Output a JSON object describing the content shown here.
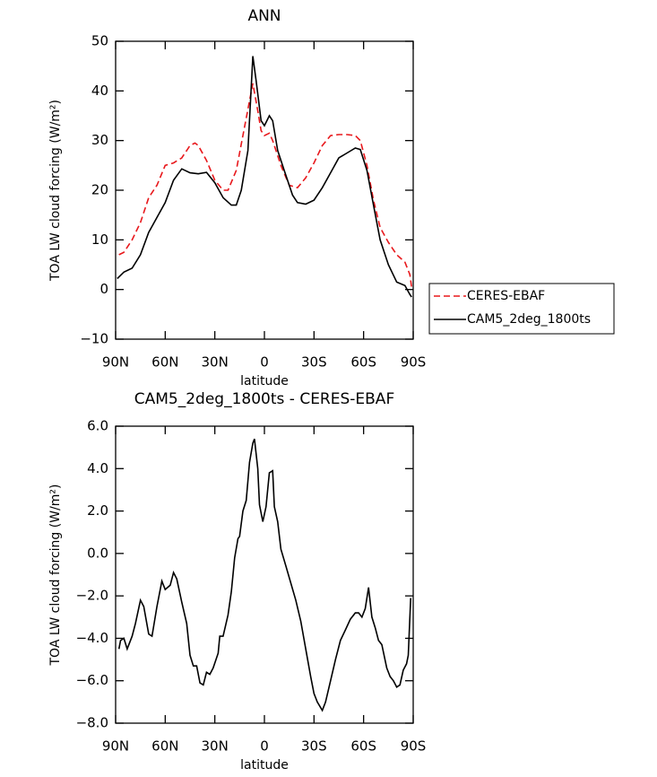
{
  "chart_data": [
    {
      "type": "line",
      "title": "ANN",
      "x_label": "latitude",
      "y_label": "TOA LW cloud forcing (W/m²)",
      "xlim": [
        90,
        -90
      ],
      "xticks": [
        {
          "value": 90,
          "label": "90N"
        },
        {
          "value": 60,
          "label": "60N"
        },
        {
          "value": 30,
          "label": "30N"
        },
        0,
        {
          "value": -30,
          "label": "30S"
        },
        {
          "value": -60,
          "label": "60S"
        },
        {
          "value": -90,
          "label": "90S"
        }
      ],
      "ylim": [
        -10,
        50
      ],
      "yticks": [
        {
          "value": -10,
          "label": "−10"
        },
        0,
        10,
        20,
        30,
        40,
        50
      ],
      "legend": "right",
      "series": [
        {
          "name": "CERES-EBAF",
          "color": "#e8181c",
          "style": "dashed",
          "x": [
            88,
            85,
            80,
            75,
            70,
            65,
            60,
            55,
            50,
            45,
            42,
            40,
            35,
            30,
            25,
            22,
            17,
            13,
            9,
            7,
            4,
            2,
            0,
            -3,
            -5,
            -10,
            -15,
            -20,
            -25,
            -30,
            -35,
            -40,
            -45,
            -50,
            -55,
            -58,
            -62,
            -66,
            -70,
            -75,
            -80,
            -85,
            -88,
            -89
          ],
          "values": [
            7,
            7.5,
            10,
            13.5,
            18.5,
            21,
            25,
            25.5,
            26.5,
            29,
            29.5,
            29,
            26,
            22,
            20,
            20,
            24,
            31,
            38,
            41.5,
            36,
            32,
            31,
            31.5,
            30,
            25,
            21,
            20.5,
            22.5,
            25.5,
            29,
            31,
            31.2,
            31.2,
            31,
            30,
            25,
            18,
            12.5,
            9.5,
            7,
            5.5,
            3,
            0.5
          ]
        },
        {
          "name": "CAM5_2deg_1800ts",
          "color": "#000000",
          "style": "solid",
          "x": [
            89,
            85,
            80,
            75,
            70,
            65,
            60,
            55,
            50,
            45,
            40,
            35,
            30,
            25,
            20,
            17,
            14,
            10,
            7,
            5,
            2,
            0,
            -3,
            -5,
            -8,
            -12,
            -17,
            -20,
            -25,
            -30,
            -35,
            -40,
            -45,
            -50,
            -55,
            -58,
            -62,
            -66,
            -70,
            -75,
            -80,
            -85,
            -88,
            -89
          ],
          "values": [
            2.2,
            3.5,
            4.3,
            7,
            11.5,
            14.5,
            17.5,
            22,
            24.3,
            23.5,
            23.3,
            23.6,
            21.5,
            18.5,
            17,
            17,
            20,
            28,
            47,
            42,
            34,
            33,
            35,
            34,
            28,
            24,
            19,
            17.5,
            17.2,
            18,
            20.5,
            23.5,
            26.5,
            27.5,
            28.5,
            28.2,
            24,
            17,
            10,
            5,
            1.5,
            0.8,
            -1,
            -1.5
          ]
        }
      ]
    },
    {
      "type": "line",
      "title": "CAM5_2deg_1800ts - CERES-EBAF",
      "x_label": "latitude",
      "y_label": "TOA LW cloud forcing (W/m²)",
      "xlim": [
        90,
        -90
      ],
      "xticks": [
        {
          "value": 90,
          "label": "90N"
        },
        {
          "value": 60,
          "label": "60N"
        },
        {
          "value": 30,
          "label": "30N"
        },
        0,
        {
          "value": -30,
          "label": "30S"
        },
        {
          "value": -60,
          "label": "60S"
        },
        {
          "value": -90,
          "label": "90S"
        }
      ],
      "ylim": [
        -8,
        6
      ],
      "yticks": [
        {
          "value": -8,
          "label": "−8.0"
        },
        {
          "value": -6,
          "label": "−6.0"
        },
        {
          "value": -4,
          "label": "−4.0"
        },
        {
          "value": -2,
          "label": "−2.0"
        },
        {
          "value": 0,
          "label": "0.0"
        },
        {
          "value": 2,
          "label": "2.0"
        },
        {
          "value": 4,
          "label": "4.0"
        },
        {
          "value": 6,
          "label": "6.0"
        }
      ],
      "color": "#000000",
      "x": [
        88,
        87,
        85,
        83,
        80,
        78,
        75,
        73,
        70,
        68,
        65,
        62,
        60,
        57,
        55,
        53,
        50,
        47,
        45,
        43,
        41,
        39,
        37,
        35,
        33,
        31,
        28,
        27,
        25,
        22,
        20,
        18,
        16,
        15,
        13,
        11,
        9,
        7,
        6,
        4,
        3,
        1,
        -1,
        -3,
        -5,
        -6,
        -8,
        -10,
        -13,
        -16,
        -19,
        -22,
        -25,
        -28,
        -30,
        -32,
        -35,
        -37,
        -40,
        -43,
        -46,
        -49,
        -52,
        -55,
        -57,
        -59,
        -61,
        -63,
        -65,
        -67,
        -69,
        -71,
        -74,
        -76,
        -78,
        -80,
        -82,
        -84,
        -86,
        -87,
        -88.5
      ],
      "values": [
        -4.5,
        -4.1,
        -4,
        -4.5,
        -3.9,
        -3.3,
        -2.2,
        -2.5,
        -3.8,
        -3.9,
        -2.5,
        -1.3,
        -1.7,
        -1.5,
        -0.9,
        -1.2,
        -2.3,
        -3.3,
        -4.8,
        -5.3,
        -5.3,
        -6.1,
        -6.2,
        -5.6,
        -5.7,
        -5.4,
        -4.7,
        -3.9,
        -3.9,
        -2.9,
        -1.8,
        -0.2,
        0.7,
        0.8,
        2,
        2.5,
        4.3,
        5.2,
        5.4,
        4,
        2.3,
        1.5,
        2.2,
        3.8,
        3.9,
        2.2,
        1.5,
        0.2,
        -0.6,
        -1.4,
        -2.2,
        -3.2,
        -4.5,
        -5.8,
        -6.6,
        -7,
        -7.4,
        -7,
        -6,
        -5,
        -4.1,
        -3.6,
        -3.1,
        -2.8,
        -2.8,
        -3,
        -2.6,
        -1.6,
        -3,
        -3.5,
        -4.1,
        -4.3,
        -5.4,
        -5.8,
        -6,
        -6.3,
        -6.2,
        -5.5,
        -5.2,
        -4.8,
        -2.1
      ]
    }
  ]
}
